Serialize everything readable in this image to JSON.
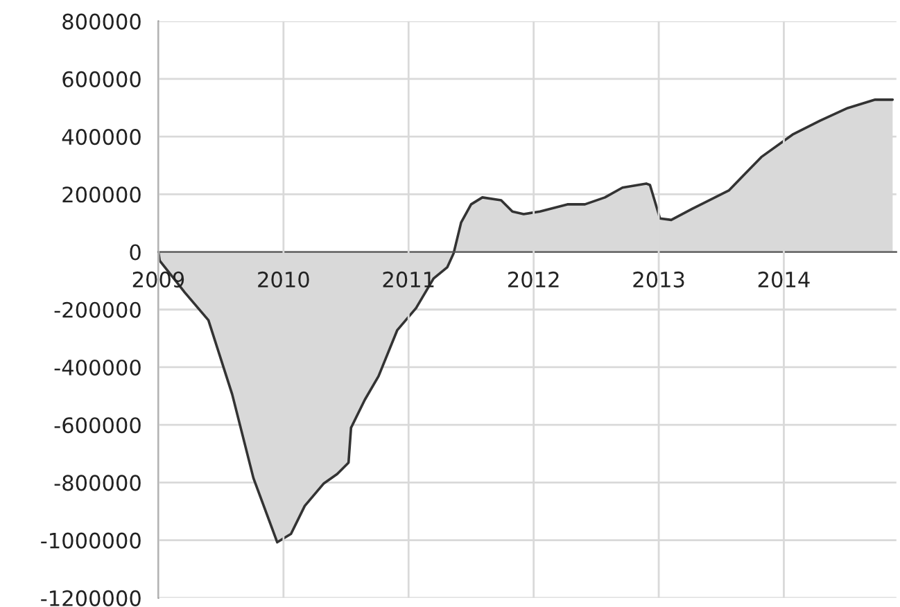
{
  "chart_data": {
    "type": "area",
    "x": [
      2009.0,
      2009.01,
      2009.21,
      2009.4,
      2009.59,
      2009.76,
      2009.95,
      2010.06,
      2010.17,
      2010.32,
      2010.43,
      2010.52,
      2010.54,
      2010.65,
      2010.76,
      2010.91,
      2011.06,
      2011.2,
      2011.31,
      2011.36,
      2011.42,
      2011.5,
      2011.59,
      2011.74,
      2011.83,
      2011.92,
      2012.05,
      2012.27,
      2012.41,
      2012.57,
      2012.71,
      2012.9,
      2012.93,
      2013.01,
      2013.1,
      2013.27,
      2013.56,
      2013.82,
      2014.07,
      2014.29,
      2014.51,
      2014.73,
      2014.87
    ],
    "series": [
      {
        "color": "#d9d9d9",
        "values": [
          0,
          -30000,
          -140000,
          -237000,
          -494000,
          -785000,
          -1007000,
          -978000,
          -881000,
          -804000,
          -770000,
          -731000,
          -610000,
          -513000,
          -431000,
          -271000,
          -195000,
          -92000,
          -53000,
          -5000,
          102000,
          165000,
          189000,
          179000,
          140000,
          131000,
          140000,
          165000,
          165000,
          189000,
          223000,
          237000,
          232000,
          116000,
          111000,
          150000,
          213000,
          329000,
          407000,
          455000,
          499000,
          528000,
          528000
        ]
      }
    ],
    "xlim": [
      2009,
      2014.9
    ],
    "xticks": [
      2009,
      2010,
      2011,
      2012,
      2013,
      2014
    ],
    "ylim": [
      -1200000,
      800000
    ],
    "yticks": [
      -1200000,
      -1000000,
      -800000,
      -600000,
      -400000,
      -200000,
      0,
      200000,
      400000,
      600000,
      800000
    ],
    "grid": true
  }
}
